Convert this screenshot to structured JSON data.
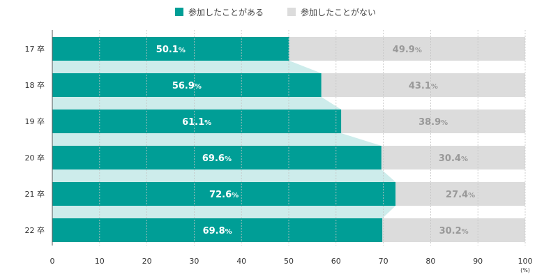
{
  "chart_data": {
    "type": "bar",
    "orientation": "horizontal",
    "stacked": true,
    "categories": [
      "17卒",
      "18卒",
      "19卒",
      "20卒",
      "21卒",
      "22卒"
    ],
    "category_labels": [
      {
        "num": "17",
        "suffix": "卒"
      },
      {
        "num": "18",
        "suffix": "卒"
      },
      {
        "num": "19",
        "suffix": "卒"
      },
      {
        "num": "20",
        "suffix": "卒"
      },
      {
        "num": "21",
        "suffix": "卒"
      },
      {
        "num": "22",
        "suffix": "卒"
      }
    ],
    "series": [
      {
        "name": "参加したことがある",
        "values": [
          50.1,
          56.9,
          61.1,
          69.6,
          72.6,
          69.8
        ],
        "color": "#009e96",
        "label_color": "#ffffff"
      },
      {
        "name": "参加したことがない",
        "values": [
          49.9,
          43.1,
          38.9,
          30.4,
          27.4,
          30.2
        ],
        "color": "#dcdcdc",
        "label_color": "#999999"
      }
    ],
    "connector_color": "#cdeceb",
    "value_suffix": "%",
    "xlim": [
      0,
      100
    ],
    "xticks": [
      0,
      10,
      20,
      30,
      40,
      50,
      60,
      70,
      80,
      90,
      100
    ],
    "xunit": "(%)",
    "legend_position": "top-center",
    "grid": true
  }
}
